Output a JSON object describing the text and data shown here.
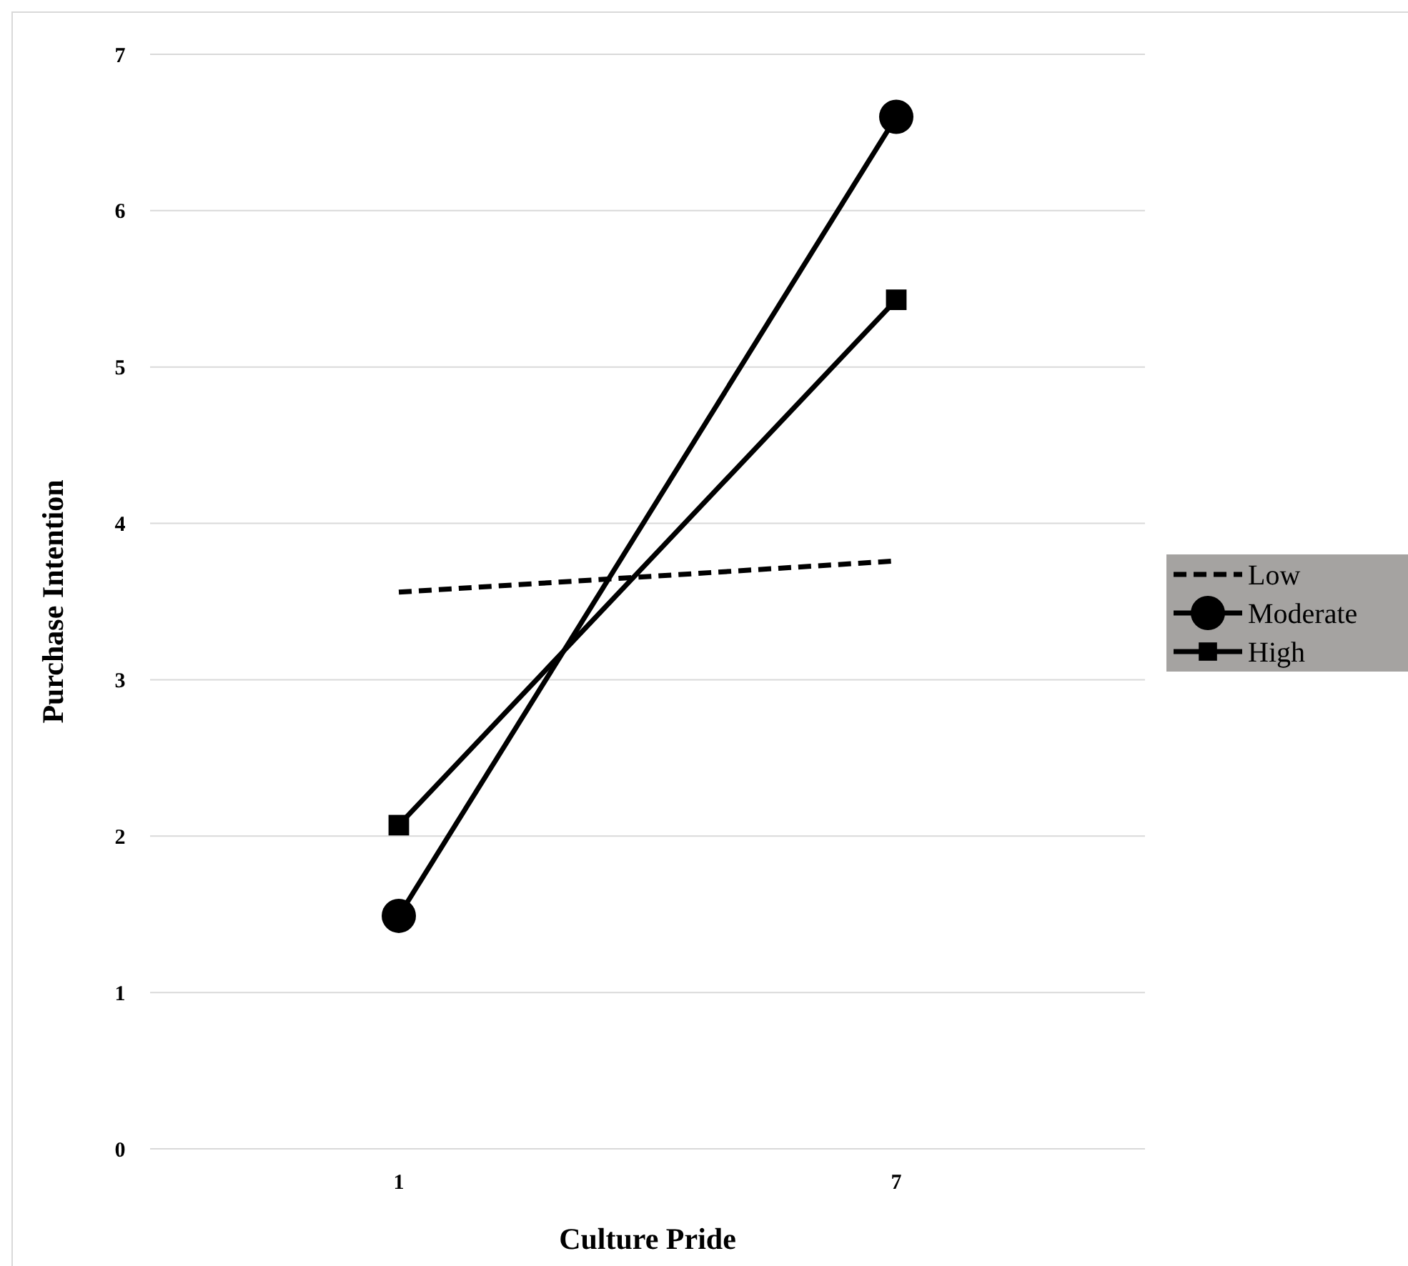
{
  "chart_data": {
    "type": "line",
    "xlabel": "Culture Pride",
    "ylabel": "Purchase Intention",
    "categories": [
      "1",
      "7"
    ],
    "series": [
      {
        "name": "Low",
        "color": "#000000",
        "values": [
          3.56,
          3.76
        ],
        "line_style": "dashed",
        "marker": "none"
      },
      {
        "name": "Moderate",
        "color": "#000000",
        "values": [
          1.49,
          6.6
        ],
        "line_style": "solid",
        "marker": "circle"
      },
      {
        "name": "High",
        "color": "#000000",
        "values": [
          2.07,
          5.43
        ],
        "line_style": "solid",
        "marker": "square"
      }
    ],
    "ylim": [
      0,
      7
    ],
    "yticks": [
      0,
      1,
      2,
      3,
      4,
      5,
      6,
      7
    ],
    "grid": "y",
    "legend": "right"
  }
}
